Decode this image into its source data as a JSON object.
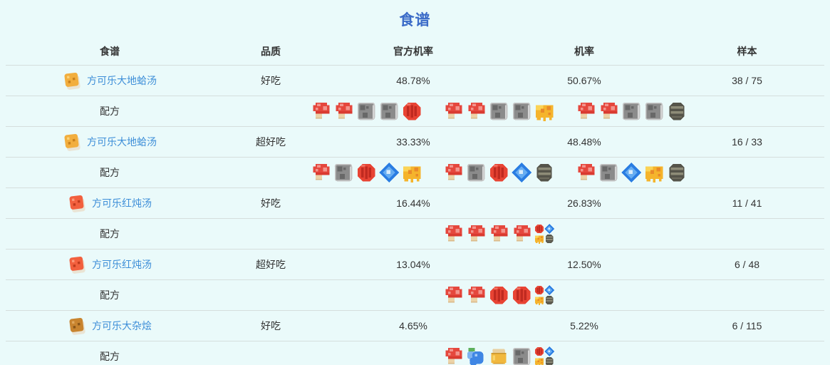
{
  "page": {
    "title": "食谱"
  },
  "colors": {
    "background": "#eafafa",
    "title_blue": "#3c6cc8",
    "link_blue": "#3d8ed8",
    "divider": "#d5dedd",
    "text": "#333333"
  },
  "table": {
    "headers": [
      {
        "key": "recipe",
        "label": "食谱"
      },
      {
        "key": "quality",
        "label": "品质"
      },
      {
        "key": "official",
        "label": "官方机率"
      },
      {
        "key": "rate",
        "label": "机率"
      },
      {
        "key": "sample",
        "label": "样本"
      }
    ],
    "formula_label": "配方",
    "rows": [
      {
        "name": "方可乐大地蛤汤",
        "dish_icon": "dish-orange",
        "quality": "好吃",
        "official_rate": "48.78%",
        "rate": "50.67%",
        "sample": "38 / 75",
        "ingredient_groups": [
          [
            "mushroom",
            "mushroom",
            "slab",
            "slab",
            "red-berry"
          ],
          [
            "mushroom",
            "mushroom",
            "slab",
            "slab",
            "honey"
          ],
          [
            "mushroom",
            "mushroom",
            "slab",
            "slab",
            "coal"
          ]
        ]
      },
      {
        "name": "方可乐大地蛤汤",
        "dish_icon": "dish-orange",
        "quality": "超好吃",
        "official_rate": "33.33%",
        "rate": "48.48%",
        "sample": "16 / 33",
        "ingredient_groups": [
          [
            "mushroom",
            "slab",
            "red-berry",
            "gem",
            "honey"
          ],
          [
            "mushroom",
            "slab",
            "red-berry",
            "gem",
            "coal"
          ],
          [
            "mushroom",
            "slab",
            "gem",
            "honey",
            "coal"
          ]
        ]
      },
      {
        "name": "方可乐红炖汤",
        "dish_icon": "dish-red",
        "quality": "好吃",
        "official_rate": "16.44%",
        "rate": "26.83%",
        "sample": "11 / 41",
        "ingredient_groups": [
          [
            "mushroom",
            "mushroom",
            "mushroom",
            "mushroom",
            "combo"
          ]
        ]
      },
      {
        "name": "方可乐红炖汤",
        "dish_icon": "dish-red",
        "quality": "超好吃",
        "official_rate": "13.04%",
        "rate": "12.50%",
        "sample": "6 / 48",
        "ingredient_groups": [
          [
            "mushroom",
            "mushroom",
            "red-berry",
            "red-berry",
            "combo"
          ]
        ]
      },
      {
        "name": "方可乐大杂烩",
        "dish_icon": "dish-brown",
        "quality": "好吃",
        "official_rate": "4.65%",
        "rate": "5.22%",
        "sample": "6 / 115",
        "ingredient_groups": [
          [
            "mushroom",
            "blueberry",
            "pot",
            "slab",
            "combo"
          ]
        ]
      }
    ]
  }
}
